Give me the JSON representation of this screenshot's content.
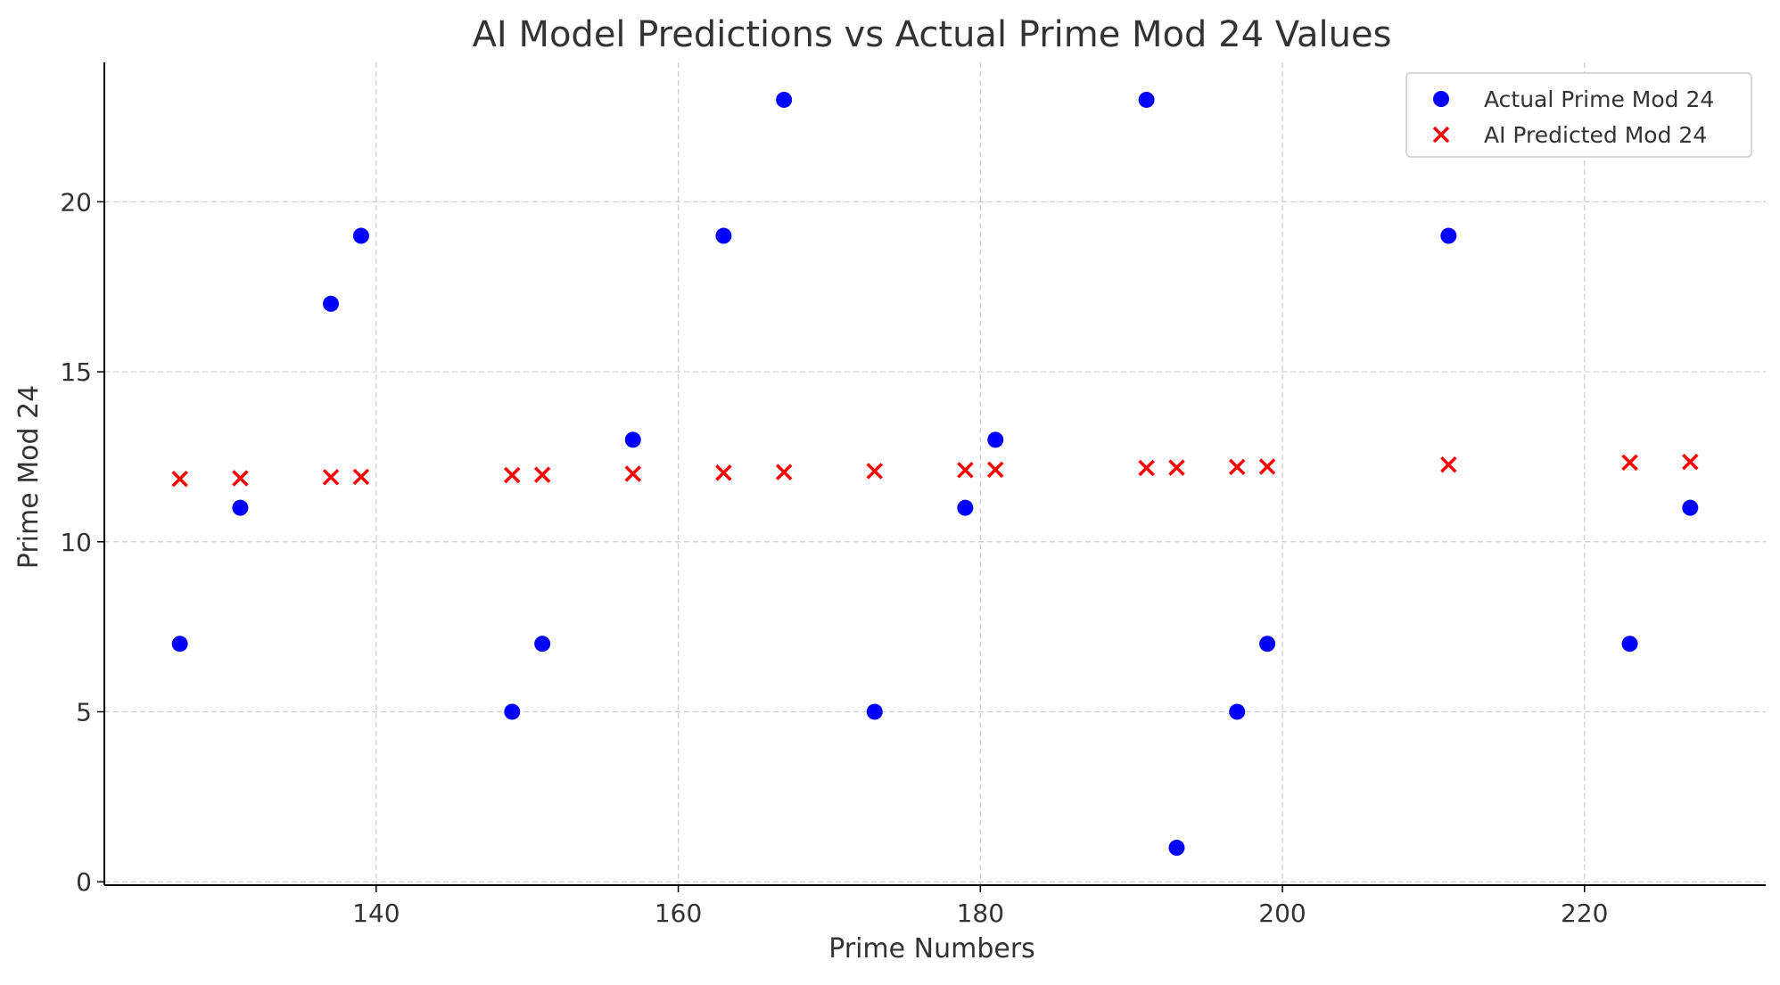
{
  "chart_data": {
    "type": "scatter",
    "title": "AI Model Predictions vs Actual Prime Mod 24 Values",
    "xlabel": "Prime Numbers",
    "ylabel": "Prime Mod 24",
    "xlim": [
      122,
      232
    ],
    "ylim": [
      -0.1,
      24.1
    ],
    "x_ticks": [
      140,
      160,
      180,
      200,
      220
    ],
    "y_ticks": [
      0,
      5,
      10,
      15,
      20
    ],
    "grid": true,
    "legend_position": "top-right",
    "series": [
      {
        "name": "Actual Prime Mod 24",
        "marker": "circle",
        "color": "#0000ff",
        "points": [
          {
            "x": 127,
            "y": 7
          },
          {
            "x": 131,
            "y": 11
          },
          {
            "x": 137,
            "y": 17
          },
          {
            "x": 139,
            "y": 19
          },
          {
            "x": 149,
            "y": 5
          },
          {
            "x": 151,
            "y": 7
          },
          {
            "x": 157,
            "y": 13
          },
          {
            "x": 163,
            "y": 19
          },
          {
            "x": 167,
            "y": 23
          },
          {
            "x": 173,
            "y": 5
          },
          {
            "x": 179,
            "y": 11
          },
          {
            "x": 181,
            "y": 13
          },
          {
            "x": 191,
            "y": 23
          },
          {
            "x": 193,
            "y": 1
          },
          {
            "x": 197,
            "y": 5
          },
          {
            "x": 199,
            "y": 7
          },
          {
            "x": 211,
            "y": 19
          },
          {
            "x": 223,
            "y": 7
          },
          {
            "x": 227,
            "y": 11
          }
        ]
      },
      {
        "name": "AI Predicted Mod 24",
        "marker": "x",
        "color": "#ff0000",
        "points": [
          {
            "x": 127,
            "y": 11.85
          },
          {
            "x": 131,
            "y": 11.87
          },
          {
            "x": 137,
            "y": 11.9
          },
          {
            "x": 139,
            "y": 11.91
          },
          {
            "x": 149,
            "y": 11.96
          },
          {
            "x": 151,
            "y": 11.97
          },
          {
            "x": 157,
            "y": 12.0
          },
          {
            "x": 163,
            "y": 12.03
          },
          {
            "x": 167,
            "y": 12.05
          },
          {
            "x": 173,
            "y": 12.08
          },
          {
            "x": 179,
            "y": 12.11
          },
          {
            "x": 181,
            "y": 12.12
          },
          {
            "x": 191,
            "y": 12.17
          },
          {
            "x": 193,
            "y": 12.18
          },
          {
            "x": 197,
            "y": 12.2
          },
          {
            "x": 199,
            "y": 12.21
          },
          {
            "x": 211,
            "y": 12.27
          },
          {
            "x": 223,
            "y": 12.33
          },
          {
            "x": 227,
            "y": 12.35
          }
        ]
      }
    ]
  },
  "colors": {
    "grid": "#cccccc",
    "axis": "#000000",
    "text": "#333333",
    "legend_border": "#cccccc"
  }
}
